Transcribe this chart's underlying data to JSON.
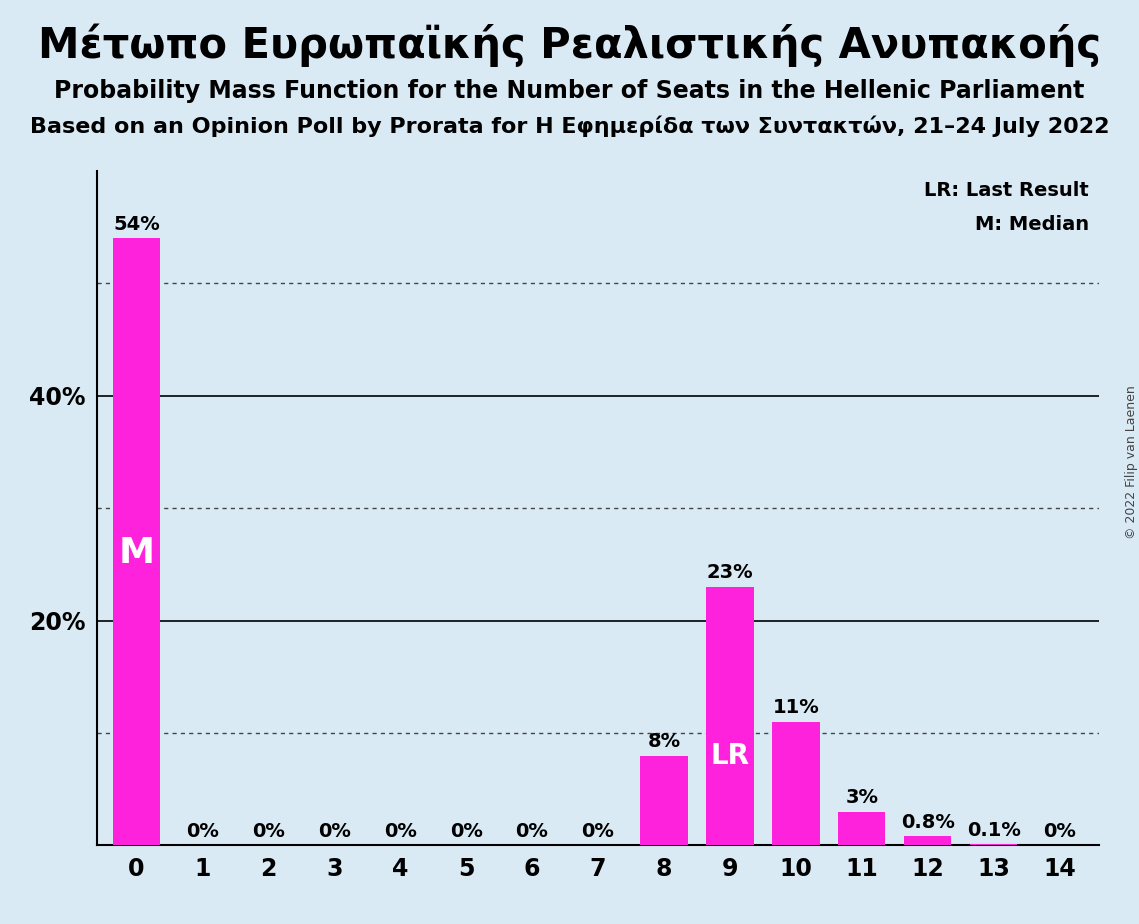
{
  "title": "Μέτωπο Ευρωπαϊκής Ρεαλιστικής Ανυπακοής",
  "subtitle1": "Probability Mass Function for the Number of Seats in the Hellenic Parliament",
  "subtitle2": "Based on an Opinion Poll by Prorata for Η Εφημερίδα των Συντακτών, 21–24 July 2022",
  "copyright": "© 2022 Filip van Laenen",
  "categories": [
    0,
    1,
    2,
    3,
    4,
    5,
    6,
    7,
    8,
    9,
    10,
    11,
    12,
    13,
    14
  ],
  "values": [
    54,
    0,
    0,
    0,
    0,
    0,
    0,
    0,
    8,
    23,
    11,
    3,
    0.8,
    0.1,
    0
  ],
  "bar_color": "#ff22dd",
  "background_color": "#daeaf5",
  "ylim": [
    0,
    60
  ],
  "yticks_labeled": [
    20,
    40
  ],
  "solid_gridlines": [
    20,
    40
  ],
  "dotted_gridlines": [
    10,
    30,
    50
  ],
  "median_bar": 0,
  "lr_bar": 9,
  "lr_label": "LR",
  "median_label": "M",
  "legend_lr": "LR: Last Result",
  "legend_m": "M: Median",
  "title_fontsize": 30,
  "subtitle1_fontsize": 17,
  "subtitle2_fontsize": 16,
  "bar_label_fontsize": 14,
  "axis_label_fontsize": 17
}
